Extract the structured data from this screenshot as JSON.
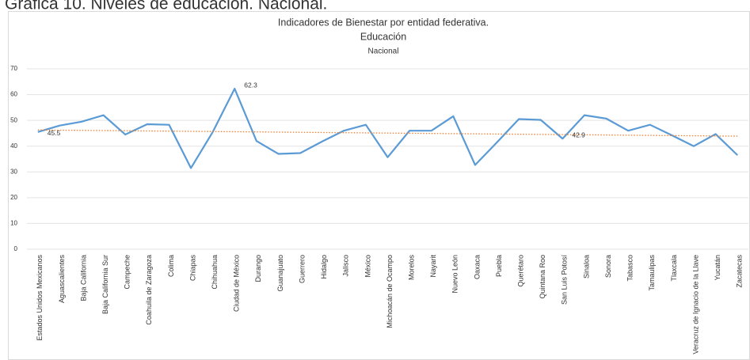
{
  "page_header": "Gráfica 10. Niveles de educación. Nacional.",
  "chart_data": {
    "type": "line",
    "title": "Indicadores de Bienestar por entidad federativa.",
    "title_line2": "Educación",
    "subtitle": "Nacional",
    "categories": [
      "Estados Unidos Mexicanos",
      "Aguascalientes",
      "Baja California",
      "Baja California Sur",
      "Campeche",
      "Coahuila de Zaragoza",
      "Colima",
      "Chiapas",
      "Chihuahua",
      "Ciudad de México",
      "Durango",
      "Guanajuato",
      "Guerrero",
      "Hidalgo",
      "Jalisco",
      "México",
      "Michoacán de Ocampo",
      "Morelos",
      "Nayarit",
      "Nuevo León",
      "Oaxaca",
      "Puebla",
      "Querétaro",
      "Quintana Roo",
      "San Luis Potosí",
      "Sinaloa",
      "Sonora",
      "Tabasco",
      "Tamaulipas",
      "Tlaxcala",
      "Veracruz de Ignacio de la Llave",
      "Yucatán",
      "Zacatecas"
    ],
    "series": [
      {
        "color": "#5b9bd5",
        "values": [
          45.5,
          48,
          49.5,
          52,
          44.5,
          48.5,
          48.3,
          31.5,
          45.5,
          62.3,
          42,
          37,
          37.3,
          41.8,
          46,
          48.3,
          35.7,
          46,
          46,
          51.6,
          32.7,
          41.5,
          50.5,
          50.2,
          42.9,
          52,
          50.7,
          46,
          48.3,
          44.2,
          40,
          44.7,
          36.5
        ],
        "value_labels": [
          "45.5",
          null,
          null,
          null,
          null,
          null,
          null,
          null,
          null,
          "62.3",
          null,
          null,
          null,
          null,
          null,
          null,
          null,
          null,
          null,
          null,
          null,
          null,
          null,
          null,
          "42.9",
          null,
          null,
          null,
          null,
          null,
          null,
          null,
          null
        ]
      }
    ],
    "trendline": {
      "type": "linear",
      "color": "#ed7d31"
    },
    "ylim": [
      0,
      70
    ],
    "yticks": [
      0,
      10,
      20,
      30,
      40,
      50,
      60,
      70
    ],
    "grid": true
  }
}
